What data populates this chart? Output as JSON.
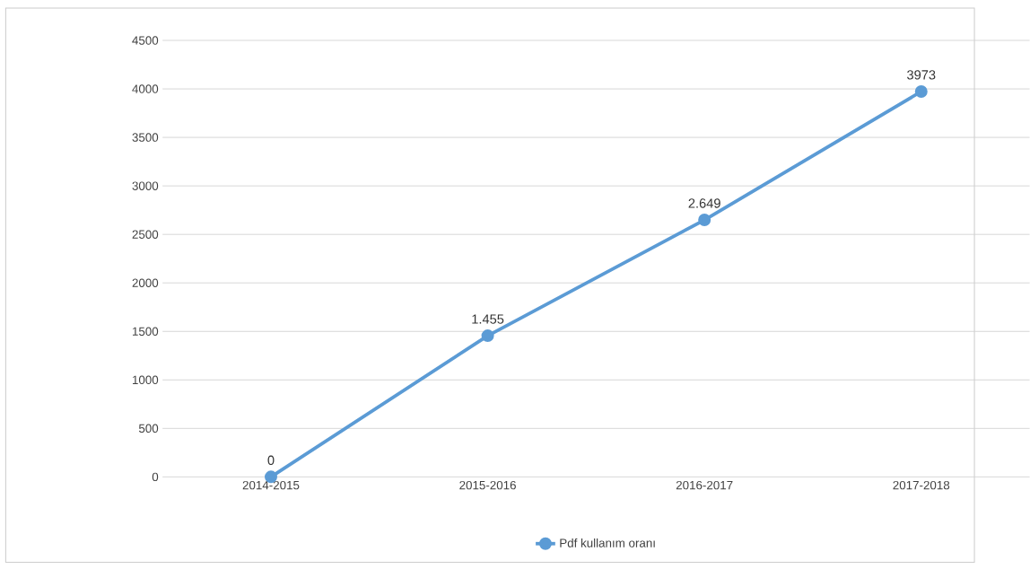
{
  "chart_data": {
    "type": "line",
    "categories": [
      "2014-2015",
      "2015-2016",
      "2016-2017",
      "2017-2018"
    ],
    "series": [
      {
        "name": "Pdf kullanım oranı",
        "color": "#5b9bd5",
        "values": [
          0,
          1455,
          2649,
          3973
        ],
        "value_labels": [
          "0",
          "1.455",
          "2.649",
          "3973"
        ]
      }
    ],
    "ylim": [
      0,
      4500
    ],
    "yticks": [
      0,
      500,
      1000,
      1500,
      2000,
      2500,
      3000,
      3500,
      4000,
      4500
    ],
    "grid": "y",
    "legend": "bottom",
    "marker": "circle",
    "line_style": "solid"
  }
}
